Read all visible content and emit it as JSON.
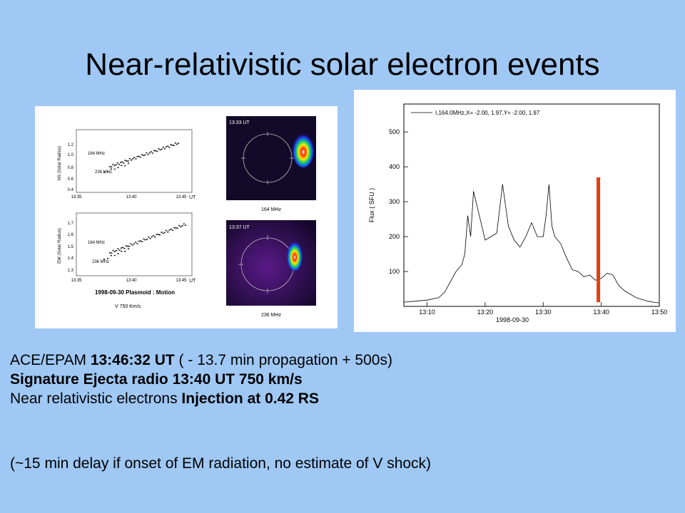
{
  "title": "Near-relativistic solar electron events",
  "left_figure": {
    "top_plot": {
      "ylabel": "NS (Solar Radius)",
      "yticks": [
        "1.2",
        "1.0",
        "0.8",
        "0.6",
        "0.4"
      ],
      "xticks": [
        "13:35",
        "13:40",
        "13:45"
      ],
      "xunit": "UT",
      "label_164": "164 MHz",
      "label_236": "236 MHz"
    },
    "bottom_plot": {
      "ylabel": "EW (Solar Radius)",
      "yticks": [
        "1.7",
        "1.6",
        "1.5",
        "1.4",
        "1.3"
      ],
      "xticks": [
        "13:35",
        "13:40",
        "13:45"
      ],
      "xunit": "UT",
      "label_164": "164 MHz",
      "label_236": "236 MHz"
    },
    "caption_title": "1998-09-30 Plasmoid : Motion",
    "caption_speed": "V  750 Km/s",
    "image_top": {
      "time": "13:33 UT",
      "freq": "164 MHz"
    },
    "image_bottom": {
      "time": "13:37 UT",
      "freq": "236 MHz"
    }
  },
  "chart_data": {
    "type": "line",
    "legend": "I,164.0MHz,X= -2.00, 1.97,Y= -2.00, 1.97",
    "ylabel": "Flux  ( SFU )",
    "xlabel": "1998-09-30",
    "xticks": [
      "13:10",
      "13:20",
      "13:30",
      "13:40",
      "13:50"
    ],
    "yticks": [
      "100",
      "200",
      "300",
      "400",
      "500"
    ],
    "xlim": [
      "13:06",
      "13:50"
    ],
    "ylim": [
      0,
      580
    ],
    "series": [
      {
        "x": [
          "13:06",
          "13:08",
          "13:10",
          "13:12",
          "13:13",
          "13:14",
          "13:15",
          "13:16",
          "13:16.5",
          "13:17",
          "13:17.5",
          "13:18",
          "13:19",
          "13:20",
          "13:21",
          "13:22",
          "13:23",
          "13:24",
          "13:25",
          "13:26",
          "13:27",
          "13:28",
          "13:29",
          "13:30",
          "13:30.5",
          "13:31",
          "13:31.5",
          "13:32",
          "13:33",
          "13:34",
          "13:35",
          "13:36",
          "13:37",
          "13:38",
          "13:39",
          "13:40",
          "13:41",
          "13:42",
          "13:43",
          "13:44",
          "13:45",
          "13:46",
          "13:47",
          "13:48",
          "13:49",
          "13:50"
        ],
        "y": [
          12,
          15,
          18,
          25,
          40,
          70,
          100,
          120,
          150,
          260,
          200,
          330,
          260,
          190,
          200,
          210,
          350,
          230,
          190,
          170,
          200,
          240,
          200,
          200,
          260,
          350,
          230,
          200,
          180,
          140,
          105,
          100,
          85,
          90,
          75,
          80,
          95,
          90,
          60,
          45,
          35,
          25,
          20,
          15,
          12,
          10
        ]
      }
    ],
    "marker_x": "13:39.5"
  },
  "text": {
    "line1_a": "ACE/EPAM  ",
    "line1_b": "13:46:32 UT",
    "line1_c": " ( - 13.7 min propagation   + 500s)",
    "line2": "Signature Ejecta radio  13:40 UT 750 km/s",
    "line3_a": "Near relativistic electrons ",
    "line3_b": "Injection at   0.42 RS",
    "line4": "(~15 min delay if onset of EM radiation, no estimate of V shock)"
  },
  "colors": {
    "background": "#9fc8f5",
    "marker": "#e04010"
  }
}
